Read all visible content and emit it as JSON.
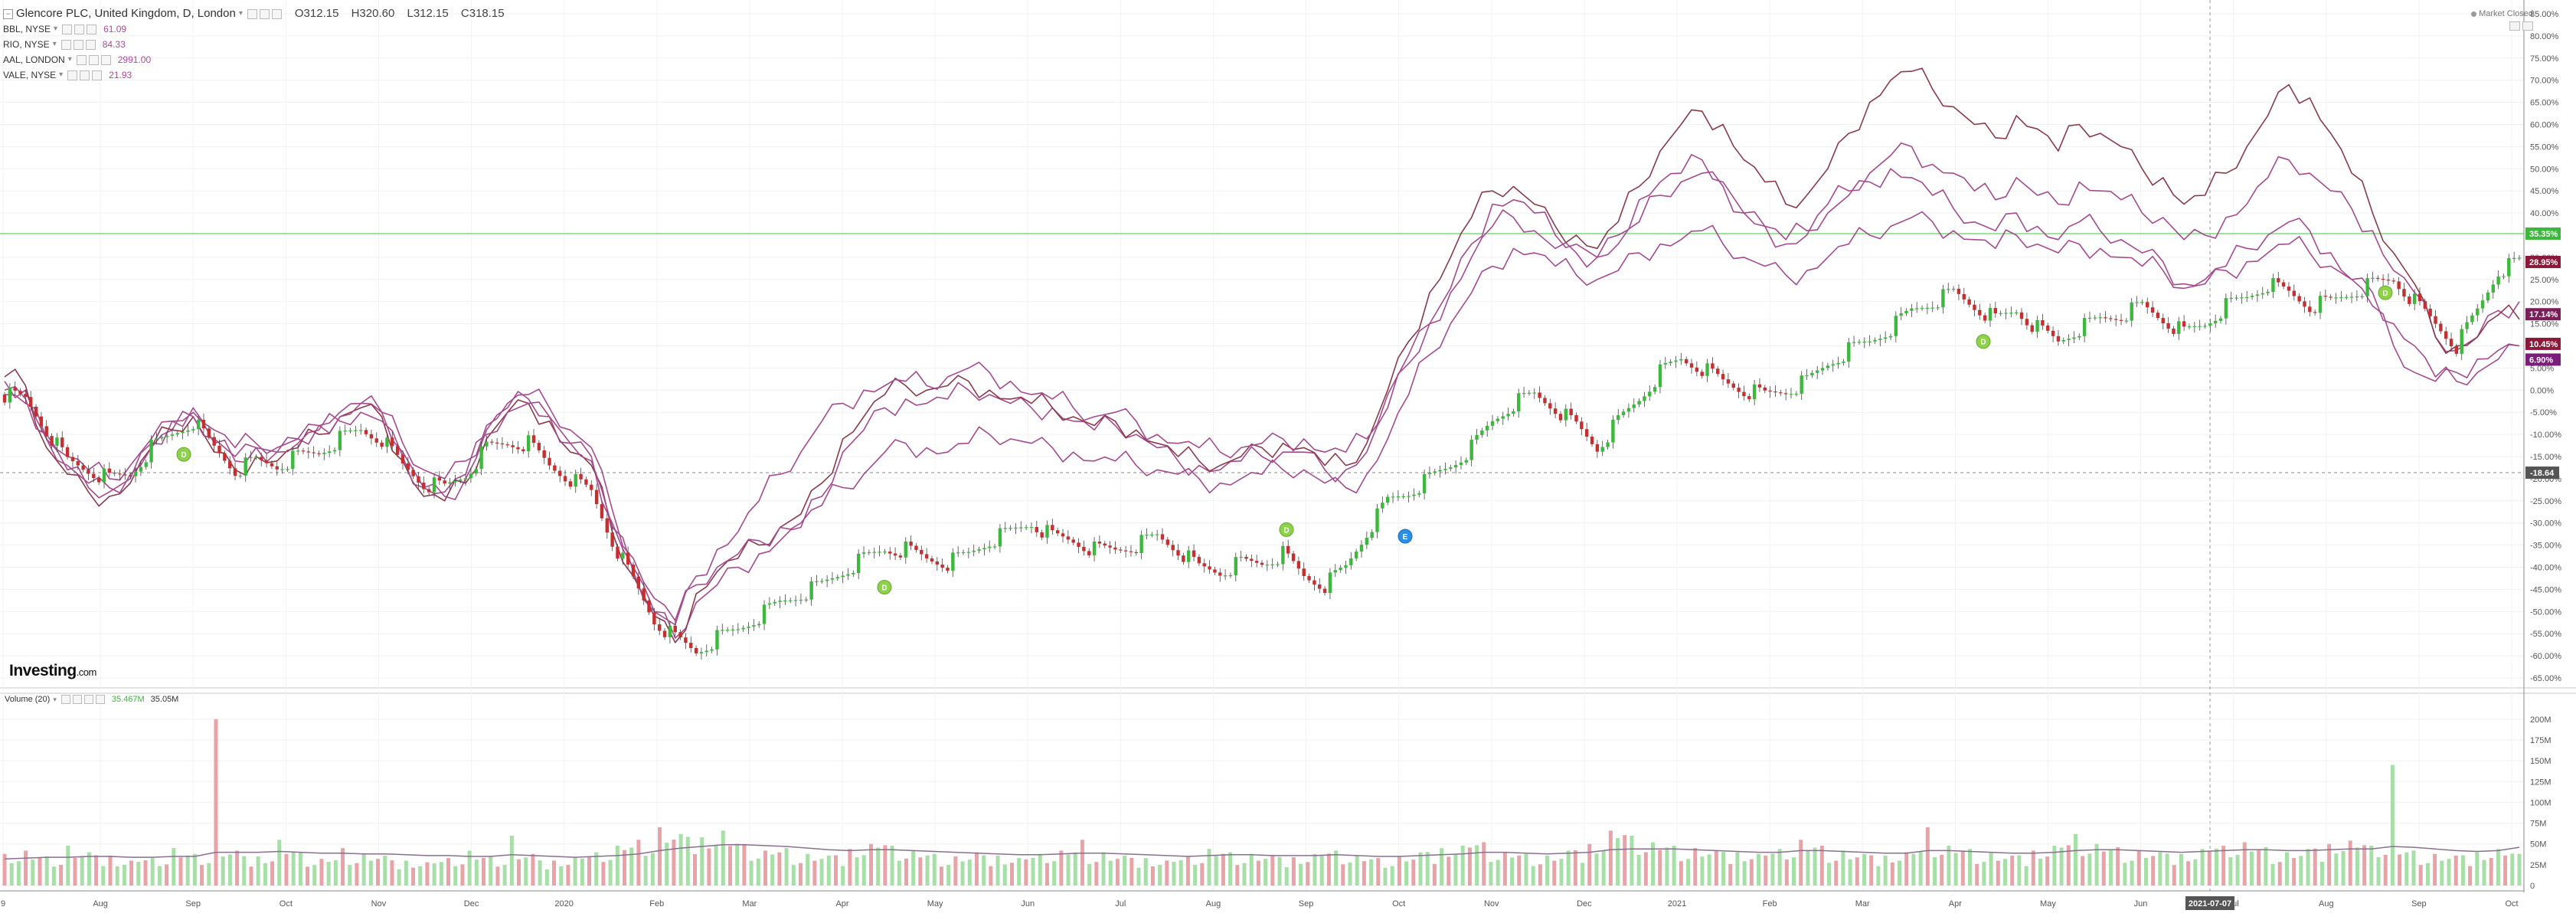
{
  "main_legend": {
    "title": "Glencore PLC, United Kingdom, D, London",
    "open": "O312.15",
    "high": "H320.60",
    "low": "L312.15",
    "close": "C318.15"
  },
  "compare_legend": [
    {
      "label": "BBL, NYSE",
      "value": "61.09",
      "color": "#b0489a"
    },
    {
      "label": "RIO, NYSE",
      "value": "84.33",
      "color": "#b0489a"
    },
    {
      "label": "AAL, LONDON",
      "value": "2991.00",
      "color": "#b0489a"
    },
    {
      "label": "VALE, NYSE",
      "value": "21.93",
      "color": "#b0489a"
    }
  ],
  "market_status": "Market Closed",
  "brand": {
    "name": "Investing",
    "suffix": ".com"
  },
  "volume_legend": {
    "title": "Volume (20)",
    "value1": "35.467M",
    "value2": "35.05M"
  },
  "colors": {
    "up": "#3cb83c",
    "down": "#c62f2f",
    "compare": "#a64a8f",
    "compare_dark": "#8b3a4a",
    "level_line": "#7cdb7c",
    "volume_up": "#a8dfa8",
    "volume_down": "#eaa2a6",
    "volume_ma": "#8a6f90"
  },
  "chart_data": [
    {
      "type": "line",
      "title": "Glencore PLC, United Kingdom, D, London",
      "y_axis": {
        "unit": "%",
        "range": [
          -65,
          85
        ],
        "tick_labels": [
          "85.00%",
          "80.00%",
          "75.00%",
          "70.00%",
          "65.00%",
          "60.00%",
          "55.00%",
          "50.00%",
          "45.00%",
          "40.00%",
          "35.00%",
          "30.00%",
          "25.00%",
          "20.00%",
          "15.00%",
          "10.00%",
          "5.00%",
          "0.00%",
          "-5.00%",
          "-10.00%",
          "-15.00%",
          "-20.00%",
          "-25.00%",
          "-30.00%",
          "-35.00%",
          "-40.00%",
          "-45.00%",
          "-50.00%",
          "-55.00%",
          "-60.00%",
          "-65.00%"
        ]
      },
      "x_axis": {
        "tick_labels": [
          "9",
          "Aug",
          "Sep",
          "Oct",
          "Nov",
          "Dec",
          "2020",
          "Feb",
          "Mar",
          "Apr",
          "May",
          "Jun",
          "Jul",
          "Aug",
          "Sep",
          "Oct",
          "Nov",
          "Dec",
          "2021",
          "Feb",
          "Mar",
          "Apr",
          "May",
          "Jun",
          "Jul",
          "Aug",
          "Sep",
          "Oct"
        ],
        "crosshair_label": "2021-07-07"
      },
      "horizontal_lines": [
        {
          "value": 35.35,
          "style": "solid"
        },
        {
          "value": -18.64,
          "label": "-18.64",
          "style": "dashed"
        }
      ],
      "price_labels": [
        {
          "label": "35.35%",
          "value": 35.35,
          "color": "#3cb83c"
        },
        {
          "label": "28.95%",
          "value": 28.95,
          "color": "#8b1a3a"
        },
        {
          "label": "17.14%",
          "value": 17.14,
          "color": "#7a1e5a"
        },
        {
          "label": "10.45%",
          "value": 10.45,
          "color": "#8b1a3a"
        },
        {
          "label": "6.90%",
          "value": 6.9,
          "color": "#7a1e7a"
        }
      ],
      "series": [
        {
          "style": "candlestick",
          "values": [
            -1,
            -2,
            -9,
            -16,
            -18,
            -20,
            -19,
            -13,
            -10,
            -7,
            -13,
            -18,
            -16,
            -17,
            -15,
            -14,
            -11,
            -9,
            -11,
            -17,
            -21,
            -22,
            -19,
            -13,
            -12,
            -12,
            -17,
            -20,
            -23,
            -34,
            -43,
            -52,
            -56,
            -59,
            -56,
            -54,
            -51,
            -48,
            -46,
            -44,
            -41,
            -38,
            -36,
            -36,
            -38,
            -39,
            -37,
            -34,
            -32,
            -30,
            -33,
            -34,
            -36,
            -36,
            -35,
            -33,
            -36,
            -40,
            -41,
            -39,
            -39,
            -37,
            -42,
            -44,
            -40,
            -32,
            -25,
            -23,
            -20,
            -17,
            -13,
            -7,
            -3,
            -1,
            -4,
            -8,
            -13,
            -7,
            -2,
            4,
            7,
            5,
            2,
            0,
            -1,
            0,
            2,
            6,
            9,
            11,
            14,
            18,
            20,
            22,
            19,
            16,
            18,
            14,
            11,
            14,
            16,
            17,
            19,
            16,
            13,
            15,
            19,
            21,
            24,
            22,
            19,
            20,
            22,
            24,
            25,
            20,
            15,
            10,
            18,
            27,
            29
          ]
        },
        {
          "values": [
            2,
            0,
            -11,
            -18,
            -22,
            -23,
            -20,
            -12,
            -7,
            -5,
            -12,
            -16,
            -13,
            -14,
            -11,
            -8,
            -5,
            -3,
            -5,
            -14,
            -22,
            -24,
            -20,
            -9,
            -4,
            -2,
            -6,
            -12,
            -15,
            -30,
            -40,
            -50,
            -56,
            -48,
            -44,
            -40,
            -37,
            -34,
            -31,
            -24,
            -14,
            -9,
            -4,
            -2,
            -3,
            -2,
            0,
            -1,
            -3,
            -4,
            -4,
            -7,
            -9,
            -8,
            -10,
            -13,
            -16,
            -17,
            -18,
            -16,
            -15,
            -14,
            -14,
            -18,
            -18,
            -14,
            -4,
            6,
            15,
            23,
            33,
            42,
            43,
            40,
            35,
            33,
            30,
            35,
            43,
            47,
            49,
            52,
            47,
            40,
            37,
            33,
            35,
            42,
            45,
            49,
            53,
            55,
            51,
            49,
            45,
            43,
            48,
            44,
            42,
            47,
            45,
            43,
            40,
            39,
            34,
            35,
            39,
            42,
            48,
            52,
            49,
            45,
            41,
            36,
            27,
            22,
            12,
            9,
            12,
            18,
            20
          ]
        },
        {
          "values": [
            3,
            1,
            -13,
            -19,
            -23,
            -24,
            -21,
            -13,
            -9,
            -6,
            -14,
            -18,
            -15,
            -16,
            -13,
            -10,
            -6,
            -4,
            -6,
            -16,
            -24,
            -25,
            -21,
            -11,
            -5,
            -3,
            -7,
            -14,
            -17,
            -32,
            -42,
            -51,
            -57,
            -46,
            -41,
            -38,
            -35,
            -31,
            -28,
            -21,
            -11,
            -6,
            -1,
            1,
            0,
            1,
            2,
            0,
            -2,
            -3,
            -4,
            -6,
            -8,
            -7,
            -9,
            -12,
            -15,
            -16,
            -17,
            -15,
            -13,
            -12,
            -13,
            -17,
            -17,
            -12,
            0,
            11,
            22,
            30,
            39,
            45,
            46,
            42,
            37,
            35,
            32,
            38,
            46,
            54,
            60,
            63,
            60,
            52,
            47,
            42,
            44,
            50,
            58,
            65,
            70,
            72,
            68,
            64,
            60,
            57,
            62,
            59,
            54,
            60,
            58,
            55,
            50,
            48,
            42,
            44,
            49,
            55,
            62,
            69,
            66,
            58,
            49,
            40,
            31,
            24,
            12,
            10,
            12,
            17,
            16
          ]
        },
        {
          "values": [
            0,
            -2,
            -10,
            -15,
            -18,
            -20,
            -17,
            -11,
            -7,
            -4,
            -9,
            -13,
            -12,
            -13,
            -11,
            -8,
            -6,
            -3,
            -5,
            -12,
            -18,
            -20,
            -16,
            -8,
            -3,
            -1,
            -4,
            -9,
            -13,
            -27,
            -38,
            -47,
            -52,
            -44,
            -40,
            -37,
            -34,
            -31,
            -30,
            -26,
            -22,
            -19,
            -14,
            -12,
            -13,
            -14,
            -12,
            -10,
            -11,
            -12,
            -13,
            -14,
            -16,
            -16,
            -17,
            -18,
            -19,
            -20,
            -21,
            -20,
            -19,
            -18,
            -18,
            -21,
            -22,
            -19,
            -11,
            -1,
            8,
            15,
            22,
            28,
            32,
            31,
            28,
            26,
            25,
            27,
            31,
            33,
            34,
            36,
            33,
            30,
            28,
            26,
            27,
            30,
            33,
            35,
            37,
            39,
            38,
            36,
            34,
            32,
            35,
            33,
            31,
            33,
            32,
            30,
            28,
            27,
            23,
            24,
            27,
            29,
            31,
            33,
            31,
            28,
            25,
            22,
            15,
            10,
            3,
            2,
            4,
            7,
            10
          ]
        },
        {
          "values": [
            -1,
            -3,
            -11,
            -17,
            -21,
            -22,
            -19,
            -13,
            -9,
            -6,
            -11,
            -15,
            -13,
            -14,
            -12,
            -9,
            -7,
            -5,
            -7,
            -15,
            -22,
            -23,
            -19,
            -10,
            -5,
            -3,
            -6,
            -12,
            -16,
            -31,
            -41,
            -50,
            -53,
            -42,
            -36,
            -32,
            -25,
            -19,
            -14,
            -7,
            -3,
            0,
            1,
            2,
            1,
            3,
            5,
            4,
            2,
            -1,
            -2,
            -4,
            -6,
            -5,
            -7,
            -10,
            -12,
            -13,
            -14,
            -13,
            -12,
            -11,
            -11,
            -14,
            -14,
            -11,
            -1,
            8,
            15,
            22,
            30,
            37,
            39,
            36,
            32,
            31,
            30,
            33,
            38,
            44,
            47,
            49,
            46,
            40,
            37,
            34,
            36,
            40,
            44,
            47,
            50,
            48,
            44,
            41,
            38,
            36,
            40,
            37,
            34,
            38,
            36,
            34,
            31,
            29,
            24,
            25,
            28,
            32,
            35,
            38,
            36,
            31,
            25,
            19,
            10,
            4,
            2,
            4,
            7,
            9,
            10
          ]
        }
      ],
      "event_markers": [
        "D",
        "D",
        "D",
        "D",
        "D",
        "E"
      ]
    },
    {
      "type": "bar",
      "title": "Volume (20)",
      "y_axis": {
        "tick_labels": [
          "200M",
          "175M",
          "150M",
          "125M",
          "100M",
          "75M",
          "50M",
          "25M",
          "0"
        ],
        "range": [
          0,
          210
        ]
      },
      "x_axis": {
        "tick_labels": [
          "9",
          "Aug",
          "Sep",
          "Oct",
          "Nov",
          "Dec",
          "2020",
          "Feb",
          "Mar",
          "Apr",
          "May",
          "Jun",
          "Jul",
          "Aug",
          "Sep",
          "Oct",
          "Nov",
          "Dec",
          "2021",
          "Feb",
          "Mar",
          "Apr",
          "May",
          "Jun",
          "Jul",
          "Aug",
          "Sep",
          "Oct"
        ]
      },
      "values": [
        38,
        42,
        35,
        48,
        40,
        36,
        30,
        33,
        45,
        38,
        200,
        42,
        35,
        55,
        40,
        32,
        45,
        38,
        36,
        30,
        28,
        33,
        42,
        35,
        60,
        38,
        30,
        34,
        40,
        48,
        55,
        70,
        62,
        58,
        66,
        50,
        42,
        45,
        38,
        36,
        44,
        50,
        48,
        42,
        38,
        35,
        40,
        36,
        33,
        38,
        42,
        55,
        40,
        36,
        33,
        30,
        35,
        44,
        40,
        38,
        36,
        34,
        38,
        42,
        36,
        33,
        35,
        40,
        45,
        48,
        52,
        40,
        38,
        36,
        42,
        50,
        66,
        60,
        52,
        48,
        45,
        42,
        40,
        38,
        44,
        55,
        48,
        42,
        38,
        36,
        40,
        70,
        48,
        44,
        40,
        36,
        42,
        48,
        62,
        50,
        46,
        42,
        40,
        38,
        44,
        48,
        52,
        46,
        40,
        44,
        50,
        54,
        48,
        145,
        42,
        38,
        36,
        40,
        44,
        38
      ],
      "ma": [
        32,
        33,
        34,
        34,
        35,
        35,
        34,
        34,
        35,
        35,
        40,
        40,
        40,
        41,
        40,
        39,
        39,
        38,
        38,
        37,
        36,
        36,
        35,
        35,
        37,
        36,
        35,
        34,
        35,
        36,
        38,
        42,
        45,
        47,
        49,
        49,
        48,
        47,
        45,
        43,
        42,
        43,
        43,
        42,
        41,
        40,
        39,
        38,
        37,
        37,
        38,
        39,
        39,
        38,
        37,
        36,
        35,
        36,
        37,
        37,
        36,
        36,
        36,
        37,
        36,
        35,
        35,
        36,
        37,
        38,
        40,
        40,
        39,
        38,
        39,
        40,
        43,
        44,
        44,
        44,
        43,
        42,
        41,
        40,
        40,
        42,
        42,
        41,
        40,
        39,
        39,
        42,
        42,
        41,
        40,
        39,
        39,
        40,
        42,
        43,
        43,
        42,
        41,
        40,
        41,
        42,
        43,
        43,
        42,
        42,
        43,
        44,
        44,
        47,
        46,
        44,
        42,
        41,
        42,
        46
      ]
    }
  ]
}
